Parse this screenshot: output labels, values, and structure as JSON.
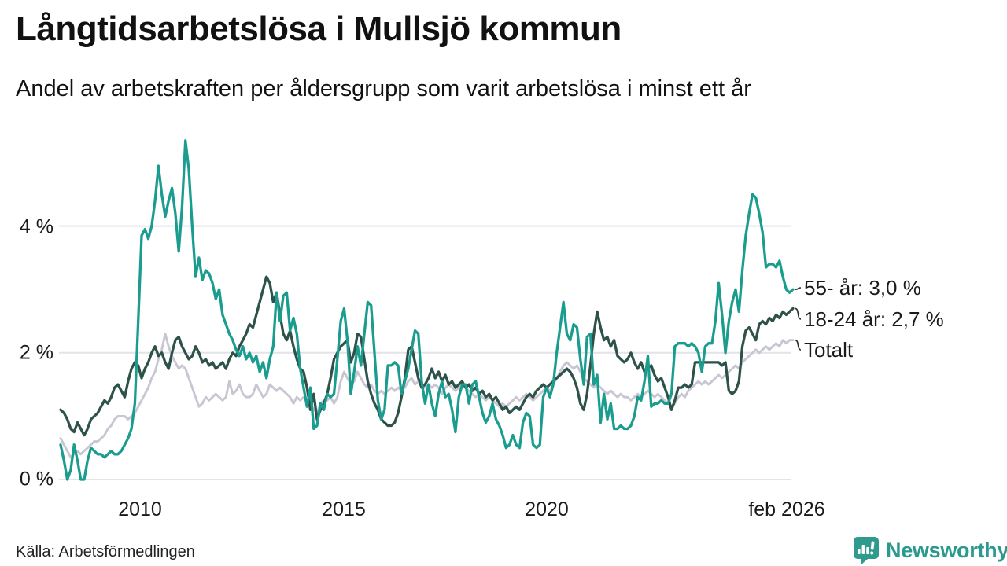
{
  "footer": {
    "source": "Källa: Arbetsförmedlingen",
    "brand": "Newsworthy"
  },
  "colors": {
    "accent_teal": "#1a9c8e",
    "dark_green": "#2e5249",
    "light_gray": "#c9c6d3",
    "gridline": "#e4e3e9",
    "connector": "#2b2b2b",
    "brand_teal": "#2b9a8e"
  },
  "chart_data": {
    "type": "line",
    "title": "Långtidsarbetslösa i Mullsjö kommun",
    "subtitle": "Andel av arbetskraften per åldersgrupp som varit arbetslösa i minst ett år",
    "unit": "%",
    "frequency": "monthly",
    "x_start": "2008-01",
    "x_end": "2026-02",
    "grid": "horizontal",
    "legend_position": "right-end-labels",
    "ylim": [
      0,
      5.6
    ],
    "x_ticks": [
      {
        "label": "2010",
        "year": 2010
      },
      {
        "label": "2015",
        "year": 2015
      },
      {
        "label": "2020",
        "year": 2020
      },
      {
        "label": "feb 2026",
        "year": 2026.08
      }
    ],
    "y_ticks": [
      {
        "value": 0,
        "label": "0 %"
      },
      {
        "value": 2,
        "label": "2 %"
      },
      {
        "value": 4,
        "label": "4 %"
      }
    ],
    "series": [
      {
        "name": "55- år",
        "end_label": "55- år: 3,0 %",
        "end_value": 3.0,
        "color": "#1a9c8e",
        "values": [
          0.55,
          0.3,
          0,
          0.15,
          0.55,
          0.3,
          0,
          0,
          0.3,
          0.5,
          0.45,
          0.4,
          0.4,
          0.35,
          0.4,
          0.45,
          0.4,
          0.4,
          0.45,
          0.55,
          0.65,
          0.8,
          1.2,
          2.5,
          3.85,
          3.95,
          3.8,
          4,
          4.4,
          4.95,
          4.5,
          4.15,
          4.4,
          4.6,
          4.2,
          3.6,
          4.3,
          5.35,
          4.9,
          4,
          3.2,
          3.5,
          3.15,
          3.3,
          3.25,
          3.1,
          2.85,
          3,
          2.6,
          2.45,
          2.3,
          2.2,
          2.05,
          1.95,
          2.1,
          1.9,
          2,
          1.85,
          1.95,
          1.7,
          1.85,
          1.6,
          1.9,
          2.1,
          2.95,
          2.5,
          2.9,
          2.95,
          2.35,
          2.55,
          2.3,
          1.75,
          1.45,
          1.15,
          1.45,
          0.8,
          0.85,
          1.2,
          1.1,
          1.35,
          1.3,
          1.35,
          1.9,
          2.5,
          2.7,
          2.2,
          1.35,
          1.7,
          2.1,
          1.8,
          2.3,
          2.8,
          2.75,
          2,
          1.25,
          0.95,
          1.1,
          1.8,
          1.8,
          1.85,
          1.8,
          1.35,
          1.55,
          1.75,
          2.05,
          2.35,
          2.3,
          1.55,
          1.2,
          1.5,
          1.2,
          1,
          1.35,
          1.55,
          1.3,
          1.35,
          1.1,
          0.75,
          1.3,
          1.5,
          1.5,
          1.2,
          1.5,
          1.55,
          1.3,
          1.05,
          0.9,
          1,
          1.2,
          0.95,
          0.85,
          0.7,
          0.5,
          0.55,
          0.7,
          0.55,
          0.5,
          0.9,
          1.05,
          1,
          0.55,
          0.5,
          0.55,
          1.3,
          1.45,
          1.3,
          1.5,
          2,
          2.4,
          2.8,
          2.3,
          2.2,
          2.45,
          2.4,
          1.9,
          1.5,
          2.25,
          2.3,
          1.5,
          1.65,
          0.9,
          1.35,
          0.95,
          1.2,
          0.8,
          0.8,
          0.85,
          0.8,
          0.8,
          0.85,
          1,
          1.3,
          1.25,
          1.55,
          1.95,
          1.15,
          1.2,
          1.2,
          1.25,
          1.2,
          1.2,
          1.35,
          2.1,
          2.15,
          2.15,
          2.15,
          2.1,
          2.15,
          2.1,
          2,
          1.7,
          2.1,
          2.15,
          2.15,
          2.5,
          3.1,
          2.6,
          2,
          2.5,
          2.8,
          3,
          2.65,
          3.3,
          3.85,
          4.2,
          4.5,
          4.45,
          4.2,
          3.9,
          3.35,
          3.4,
          3.4,
          3.35,
          3.45,
          3.2,
          3,
          2.95,
          3
        ]
      },
      {
        "name": "18-24 år",
        "end_label": "18-24 år: 2,7 %",
        "end_value": 2.7,
        "color": "#2e5249",
        "values": [
          1.1,
          1.05,
          0.95,
          0.8,
          0.75,
          0.9,
          0.8,
          0.7,
          0.8,
          0.95,
          1,
          1.05,
          1.15,
          1.25,
          1.2,
          1.3,
          1.45,
          1.5,
          1.4,
          1.3,
          1.55,
          1.75,
          1.85,
          1.8,
          1.6,
          1.75,
          1.85,
          2,
          2.1,
          1.95,
          2,
          1.85,
          1.75,
          2,
          2.2,
          2.25,
          2.1,
          2,
          1.9,
          1.95,
          2.1,
          2,
          1.85,
          1.9,
          1.8,
          1.85,
          1.75,
          1.8,
          1.85,
          1.75,
          1.9,
          2,
          1.95,
          2.1,
          2.2,
          2.3,
          2.45,
          2.4,
          2.6,
          2.8,
          3,
          3.2,
          3.1,
          2.8,
          2.95,
          2.6,
          2.3,
          2.2,
          2.35,
          2.1,
          1.9,
          1.75,
          1.7,
          1.45,
          1.1,
          1.35,
          0.95,
          1.1,
          1.2,
          1.35,
          1.6,
          1.9,
          2,
          2.1,
          2.15,
          2.2,
          1.85,
          2,
          2.3,
          2.25,
          1.9,
          1.55,
          1.35,
          1.2,
          1.1,
          0.95,
          0.9,
          0.85,
          0.85,
          0.9,
          1.05,
          1.3,
          1.6,
          2.05,
          2.1,
          1.85,
          1.6,
          1.45,
          1.5,
          1.6,
          1.75,
          1.6,
          1.7,
          1.55,
          1.65,
          1.5,
          1.55,
          1.45,
          1.5,
          1.55,
          1.45,
          1.5,
          1.4,
          1.45,
          1.35,
          1.4,
          1.3,
          1.35,
          1.25,
          1.3,
          1.2,
          1.1,
          1.15,
          1.05,
          1.1,
          1.15,
          1.1,
          1.2,
          1.3,
          1.35,
          1.3,
          1.4,
          1.45,
          1.5,
          1.45,
          1.5,
          1.55,
          1.6,
          1.65,
          1.7,
          1.75,
          1.7,
          1.6,
          1.45,
          1.2,
          1.1,
          1.35,
          1.8,
          2.3,
          2.65,
          2.4,
          2.2,
          2.25,
          2.1,
          2.2,
          1.95,
          1.9,
          1.85,
          1.9,
          2,
          1.85,
          1.75,
          1.85,
          1.7,
          1.75,
          1.8,
          1.65,
          1.55,
          1.6,
          1.45,
          1.3,
          1.1,
          1.25,
          1.45,
          1.45,
          1.5,
          1.45,
          1.5,
          1.85,
          1.85,
          1.85,
          1.85,
          1.85,
          1.85,
          1.85,
          1.85,
          1.8,
          1.85,
          1.4,
          1.35,
          1.4,
          1.55,
          2.1,
          2.35,
          2.4,
          2.3,
          2.2,
          2.45,
          2.5,
          2.45,
          2.55,
          2.5,
          2.6,
          2.55,
          2.65,
          2.6,
          2.65,
          2.7
        ]
      },
      {
        "name": "Totalt",
        "end_label": "Totalt",
        "color": "#c9c6d3",
        "values": [
          0.65,
          0.55,
          0.45,
          0.35,
          0.4,
          0.45,
          0.4,
          0.45,
          0.5,
          0.55,
          0.6,
          0.6,
          0.65,
          0.7,
          0.8,
          0.85,
          0.95,
          1,
          1,
          1,
          0.95,
          1,
          1.05,
          1.15,
          1.25,
          1.35,
          1.45,
          1.6,
          1.7,
          1.9,
          2.05,
          2.3,
          2.1,
          1.95,
          1.85,
          1.75,
          1.8,
          1.75,
          1.6,
          1.45,
          1.3,
          1.15,
          1.2,
          1.3,
          1.25,
          1.3,
          1.35,
          1.3,
          1.25,
          1.3,
          1.55,
          1.35,
          1.4,
          1.5,
          1.35,
          1.3,
          1.3,
          1.35,
          1.5,
          1.4,
          1.3,
          1.35,
          1.5,
          1.45,
          1.4,
          1.45,
          1.4,
          1.35,
          1.3,
          1.2,
          1.3,
          1.25,
          1.3,
          1.25,
          1.2,
          1.1,
          1.05,
          1.2,
          1.25,
          1.25,
          1.3,
          1.2,
          1.3,
          1.55,
          1.7,
          1.6,
          1.5,
          1.55,
          1.7,
          1.6,
          1.5,
          1.45,
          1.5,
          1.4,
          1.35,
          1.4,
          1.35,
          1.4,
          1.45,
          1.4,
          1.45,
          1.4,
          1.45,
          1.55,
          1.6,
          1.5,
          1.55,
          1.45,
          1.45,
          1.5,
          1.45,
          1.5,
          1.45,
          1.35,
          1.45,
          1.5,
          1.45,
          1.4,
          1.45,
          1.5,
          1.45,
          1.4,
          1.35,
          1.3,
          1.35,
          1.3,
          1.25,
          1.3,
          1.25,
          1.2,
          1.15,
          1.2,
          1.15,
          1.2,
          1.25,
          1.3,
          1.25,
          1.3,
          1.35,
          1.3,
          1.25,
          1.3,
          1.35,
          1.4,
          1.45,
          1.4,
          1.5,
          1.6,
          1.7,
          1.8,
          1.85,
          1.8,
          1.75,
          1.8,
          1.7,
          1.6,
          1.55,
          1.5,
          1.45,
          1.5,
          1.45,
          1.4,
          1.35,
          1.4,
          1.35,
          1.3,
          1.35,
          1.3,
          1.3,
          1.25,
          1.3,
          1.35,
          1.3,
          1.35,
          1.4,
          1.35,
          1.3,
          1.35,
          1.3,
          1.25,
          1.2,
          1.15,
          1.2,
          1.3,
          1.35,
          1.3,
          1.4,
          1.45,
          1.5,
          1.55,
          1.5,
          1.55,
          1.5,
          1.55,
          1.6,
          1.65,
          1.6,
          1.65,
          1.7,
          1.75,
          1.8,
          1.75,
          1.85,
          1.9,
          1.95,
          2,
          2.05,
          2,
          2.05,
          2.1,
          2.05,
          2.1,
          2.15,
          2.1,
          2.2,
          2.15,
          2.2,
          2.2
        ]
      }
    ]
  }
}
